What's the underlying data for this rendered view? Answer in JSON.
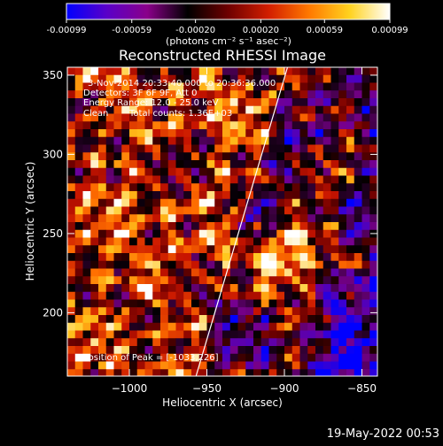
{
  "colorbar": {
    "ticks": [
      "-0.00099",
      "-0.00059",
      "-0.00020",
      "0.00020",
      "0.00059",
      "0.00099"
    ],
    "unit_label": "(photons cm⁻² s⁻¹ asec⁻²)",
    "range": [
      -0.00099,
      0.00099
    ],
    "colors": [
      "#0000ff",
      "#5a00c8",
      "#8a008a",
      "#000000",
      "#6e0000",
      "#d21e00",
      "#ff7800",
      "#ffd21e",
      "#ffffff"
    ]
  },
  "chart_data": {
    "type": "heatmap",
    "title": "Reconstructed RHESSI Image",
    "xlabel": "Heliocentric X (arcsec)",
    "ylabel": "Heliocentric Y (arcsec)",
    "xlim": [
      -1040,
      -840
    ],
    "ylim": [
      160,
      355
    ],
    "xticks": [
      -1000,
      -950,
      -900,
      -850
    ],
    "yticks": [
      200,
      250,
      300,
      350
    ],
    "xtick_labels": [
      "−1000",
      "−950",
      "−900",
      "−850"
    ],
    "ytick_labels": [
      "200",
      "250",
      "300",
      "350"
    ],
    "limb_line": [
      [
        -957,
        160
      ],
      [
        -898,
        355
      ]
    ],
    "annotations": {
      "time": "3-Nov-2014 20:33:40.000 to 20:36:36.000",
      "detectors": "Detectors: 3F 6F 9F, Att 0",
      "energy": "Energy Range: 12.0 - 25.0 keV",
      "method": "Clean",
      "counts": "Total counts: 1.36E+03",
      "peak": "Position of Peak = [-1033,226]"
    }
  },
  "footer": {
    "timestamp": "19-May-2022 00:53"
  }
}
